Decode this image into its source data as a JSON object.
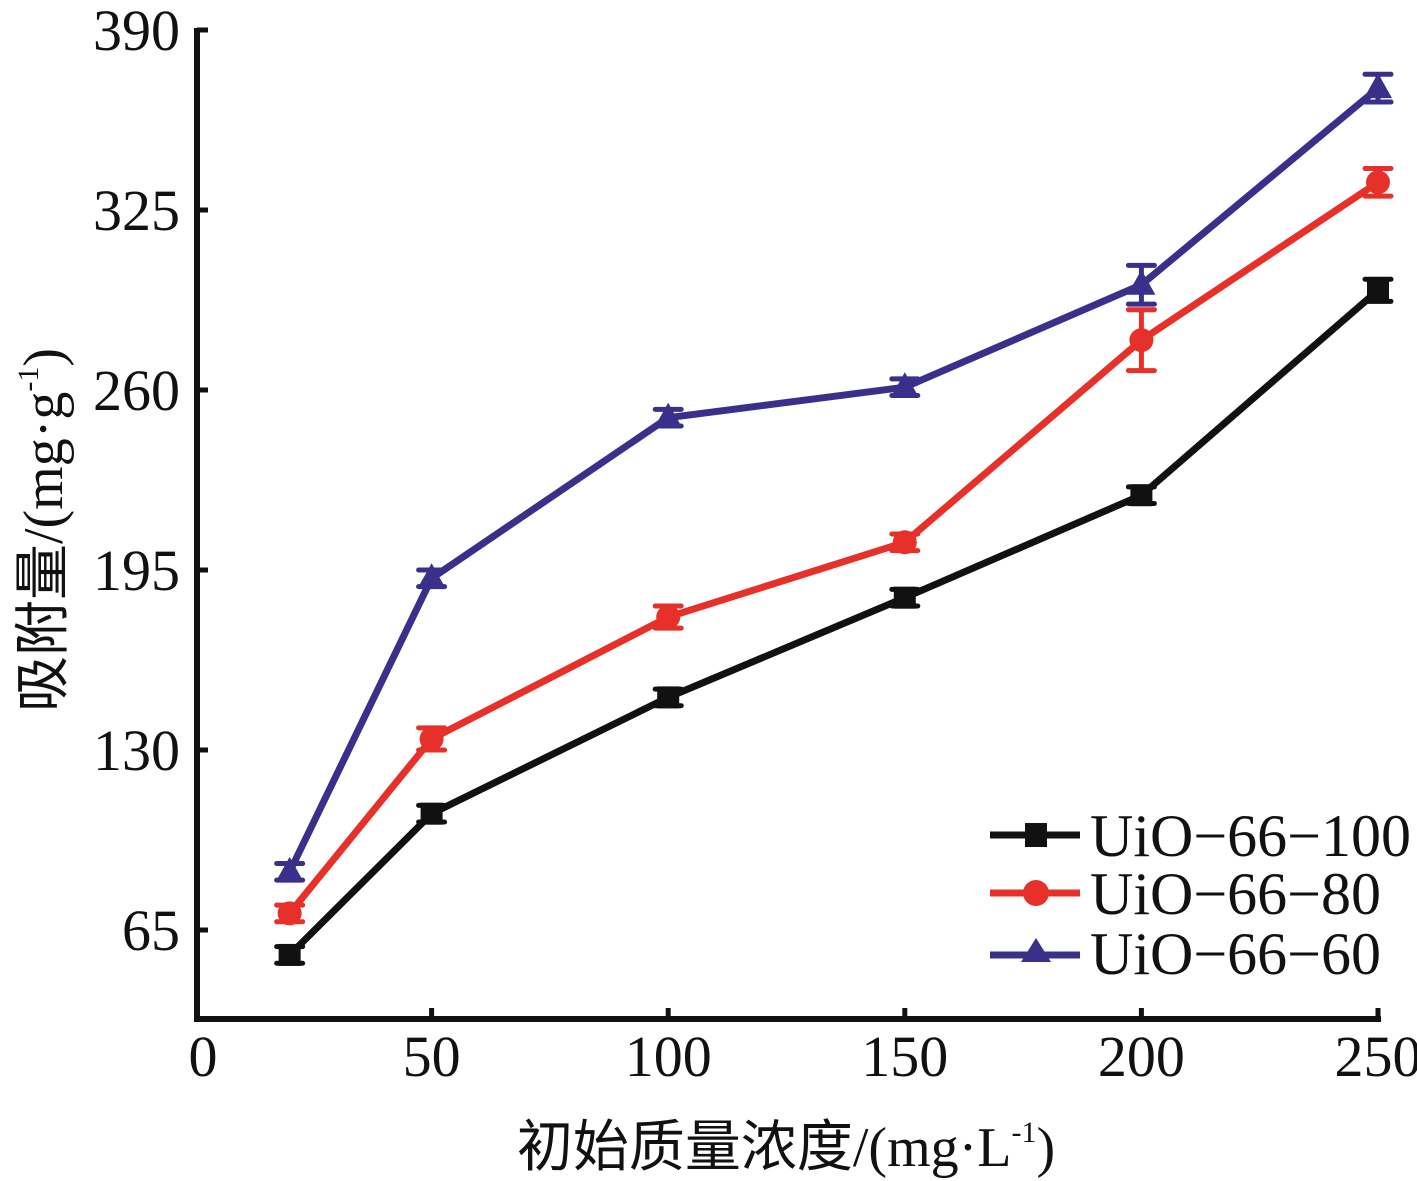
{
  "chart_data": {
    "type": "line",
    "title": "",
    "xlabel": "初始质量浓度/(mg·L",
    "xlabel_sup": "-1",
    "xlabel_end": ")",
    "ylabel": "吸附量/(mg·g",
    "ylabel_sup": "-1",
    "ylabel_end": ")",
    "xlim": [
      0,
      250
    ],
    "ylim": [
      35,
      390
    ],
    "xticks": [
      0,
      50,
      100,
      150,
      200,
      250
    ],
    "xtick_labels": [
      "0",
      "50",
      "100",
      "150",
      "200",
      "250"
    ],
    "yticks": [
      65,
      130,
      195,
      260,
      325,
      390
    ],
    "ytick_labels": [
      "65",
      "130",
      "195",
      "260",
      "325",
      "390"
    ],
    "grid": false,
    "legend_position": "bottom-right",
    "x": [
      20,
      50,
      100,
      150,
      200,
      250
    ],
    "series": [
      {
        "name": "UiO−66−100",
        "color": "#111111",
        "marker": "square",
        "values": [
          56,
          107,
          149,
          185,
          222,
          296
        ],
        "errors": [
          3,
          3,
          3,
          3,
          3,
          4
        ]
      },
      {
        "name": "UiO−66−80",
        "color": "#e8302a",
        "marker": "circle",
        "values": [
          71,
          134,
          178,
          205,
          278,
          335
        ],
        "errors": [
          3,
          4,
          4,
          3,
          11,
          5
        ]
      },
      {
        "name": "UiO−66−60",
        "color": "#3a2f8a",
        "marker": "triangle",
        "values": [
          86,
          192,
          250,
          261,
          298,
          369
        ],
        "errors": [
          3,
          3,
          3,
          3,
          7,
          5
        ]
      }
    ]
  }
}
